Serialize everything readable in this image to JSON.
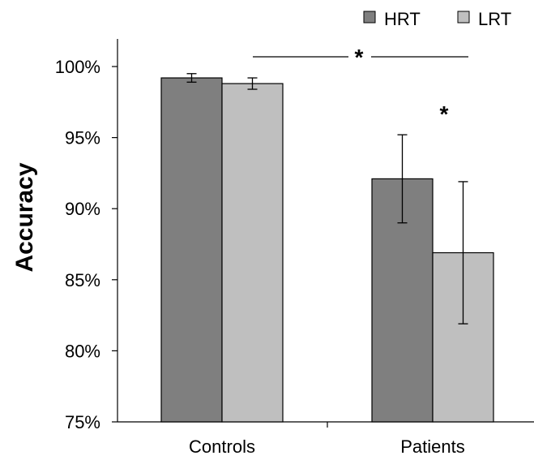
{
  "chart_data": {
    "type": "bar",
    "title": "",
    "xlabel": "",
    "ylabel": "Accuracy",
    "ylim": [
      75,
      100
    ],
    "yticks": [
      "75%",
      "80%",
      "85%",
      "90%",
      "95%",
      "100%"
    ],
    "ytick_values": [
      75,
      80,
      85,
      90,
      95,
      100
    ],
    "categories": [
      "Controls",
      "Patients"
    ],
    "series": [
      {
        "name": "HRT",
        "color": "#7f7f7f",
        "values": [
          99.2,
          92.1
        ],
        "error": [
          0.3,
          3.1
        ]
      },
      {
        "name": "LRT",
        "color": "#bfbfbf",
        "values": [
          98.8,
          86.9
        ],
        "error": [
          0.4,
          5.0
        ]
      }
    ],
    "annotations": {
      "between_groups": "*",
      "within_patients": "*"
    },
    "legend_position": "top-right",
    "grid": false
  }
}
